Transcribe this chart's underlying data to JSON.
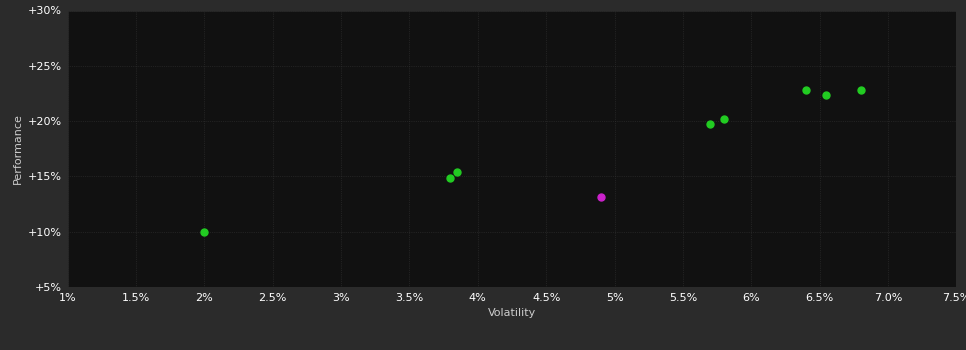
{
  "background_color": "#2b2b2b",
  "plot_bg_color": "#111111",
  "xlabel": "Volatility",
  "ylabel": "Performance",
  "xlim": [
    0.01,
    0.075
  ],
  "ylim": [
    0.05,
    0.3
  ],
  "xticks": [
    0.01,
    0.015,
    0.02,
    0.025,
    0.03,
    0.035,
    0.04,
    0.045,
    0.05,
    0.055,
    0.06,
    0.065,
    0.07,
    0.075
  ],
  "yticks": [
    0.05,
    0.1,
    0.15,
    0.2,
    0.25,
    0.3
  ],
  "green_points": [
    [
      0.02,
      0.1
    ],
    [
      0.038,
      0.149
    ],
    [
      0.0385,
      0.154
    ],
    [
      0.057,
      0.197
    ],
    [
      0.058,
      0.202
    ],
    [
      0.064,
      0.228
    ],
    [
      0.0655,
      0.224
    ],
    [
      0.068,
      0.228
    ]
  ],
  "magenta_points": [
    [
      0.049,
      0.131
    ]
  ],
  "green_color": "#22cc22",
  "magenta_color": "#cc22cc",
  "point_size": 25,
  "tick_label_color": "#ffffff",
  "axis_label_color": "#cccccc",
  "font_size_ticks": 8,
  "font_size_labels": 8,
  "grid_color": "#333333",
  "grid_linestyle": ":",
  "grid_linewidth": 0.5
}
